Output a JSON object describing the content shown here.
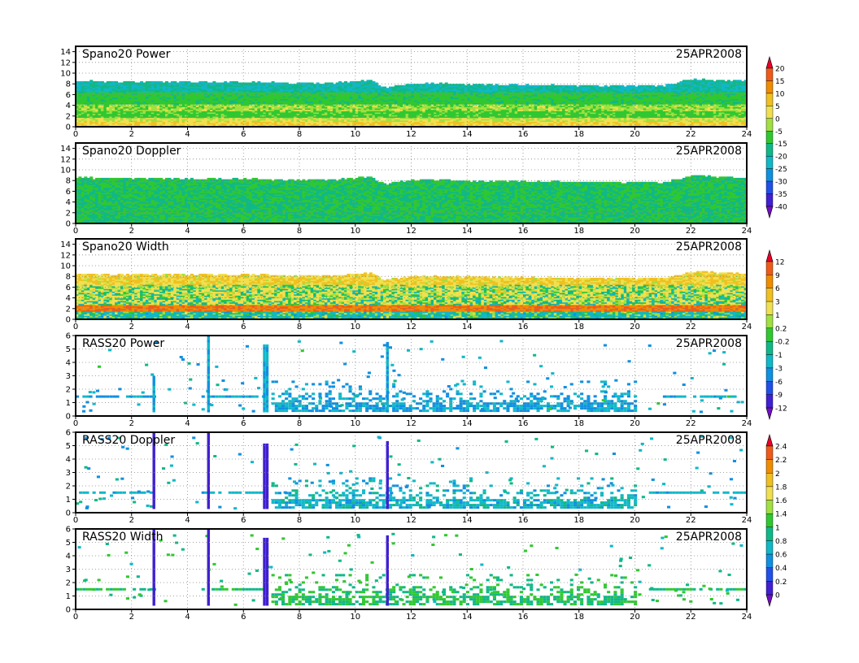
{
  "chart_data": [
    {
      "type": "heatmap",
      "title": "Spano20  Power",
      "date": "25APR2008",
      "xlim": [
        0,
        24
      ],
      "ylim": [
        0,
        15
      ],
      "xticks": [
        0,
        2,
        4,
        6,
        8,
        10,
        12,
        14,
        16,
        18,
        20,
        22,
        24
      ],
      "yticks": [
        0,
        2,
        4,
        6,
        8,
        10,
        12,
        14
      ],
      "grid": true,
      "colorbar": "power",
      "data_description": "Continuous layer from 0 to ~8 km all day; values mostly -15 to 0, with a bright near-surface band below ~1.5 km",
      "coverage": {
        "hours": [
          0,
          3,
          6,
          9,
          10.5,
          11,
          12,
          15,
          18,
          21,
          22,
          24
        ],
        "top": [
          8.4,
          8.3,
          8.2,
          8.0,
          8.6,
          7.2,
          8.0,
          7.8,
          7.6,
          7.6,
          8.8,
          8.4
        ],
        "bottom": [
          0,
          0,
          0,
          0,
          0,
          0,
          0,
          0,
          0,
          0,
          0,
          0
        ]
      },
      "layers": [
        {
          "from": 0,
          "to": 1,
          "value": 5
        },
        {
          "from": 1,
          "to": 1.6,
          "value": 0
        },
        {
          "from": 1.6,
          "to": 3,
          "value": -8
        },
        {
          "from": 3,
          "to": 4.2,
          "value": -3
        },
        {
          "from": 4.2,
          "to": 6.5,
          "value": -12
        },
        {
          "from": 6.5,
          "to": 9,
          "value": -20
        }
      ]
    },
    {
      "type": "heatmap",
      "title": "Spano20  Doppler",
      "date": "25APR2008",
      "xlim": [
        0,
        24
      ],
      "ylim": [
        0,
        15
      ],
      "xticks": [
        0,
        2,
        4,
        6,
        8,
        10,
        12,
        14,
        16,
        18,
        20,
        22,
        24
      ],
      "yticks": [
        0,
        2,
        4,
        6,
        8,
        10,
        12,
        14
      ],
      "grid": true,
      "colorbar": "power",
      "data_description": "Layer from 0 to ~8 km; values scattered between -20 and -10",
      "coverage": {
        "hours": [
          0,
          3,
          6,
          9,
          10.5,
          11,
          12,
          15,
          18,
          21,
          22,
          24
        ],
        "top": [
          8.4,
          8.3,
          8.2,
          8.0,
          8.6,
          7.2,
          8.0,
          7.8,
          7.6,
          7.6,
          8.8,
          8.4
        ],
        "bottom": [
          0,
          0,
          0,
          0,
          0,
          0,
          0,
          0,
          0,
          0,
          0,
          0
        ]
      },
      "layers": [
        {
          "from": 0,
          "to": 9,
          "value": -15
        }
      ]
    },
    {
      "type": "heatmap",
      "title": "Spano20  Width",
      "date": "25APR2008",
      "xlim": [
        0,
        24
      ],
      "ylim": [
        0,
        15
      ],
      "xticks": [
        0,
        2,
        4,
        6,
        8,
        10,
        12,
        14,
        16,
        18,
        20,
        22,
        24
      ],
      "yticks": [
        0,
        2,
        4,
        6,
        8,
        10,
        12,
        14
      ],
      "grid": true,
      "colorbar": "width",
      "data_description": "Layer from 0 to ~8 km; strong band near 1.5-2.5 km (values 3-12), upper levels near 0.2-1",
      "coverage": {
        "hours": [
          0,
          3,
          6,
          9,
          10.5,
          11,
          12,
          15,
          18,
          21,
          22,
          24
        ],
        "top": [
          8.4,
          8.3,
          8.2,
          8.0,
          8.6,
          7.2,
          8.0,
          7.8,
          7.6,
          7.6,
          8.8,
          8.4
        ],
        "bottom": [
          0,
          0,
          0,
          0,
          0,
          0,
          0,
          0,
          0,
          0,
          0,
          0
        ]
      },
      "layers": [
        {
          "from": 0,
          "to": 1.3,
          "value": -1
        },
        {
          "from": 1.3,
          "to": 2.6,
          "value": 9
        },
        {
          "from": 2.6,
          "to": 4,
          "value": 0.5
        },
        {
          "from": 4,
          "to": 6.5,
          "value": 1
        },
        {
          "from": 6.5,
          "to": 9,
          "value": 3
        }
      ]
    },
    {
      "type": "heatmap",
      "title": "RASS20  Power",
      "date": "25APR2008",
      "xlim": [
        0,
        24
      ],
      "ylim": [
        0,
        6
      ],
      "xticks": [
        0,
        2,
        4,
        6,
        8,
        10,
        12,
        14,
        16,
        18,
        20,
        22,
        24
      ],
      "yticks": [
        0,
        1,
        2,
        3,
        4,
        5,
        6
      ],
      "grid": true,
      "colorbar": "width",
      "data_description": "Sparse returns: horizontal band near 1.4 km, dense cluster 0.3-2.5 km from 7 to 20 h, vertical streaks at about 2.8, 4.7, 6.7 and 11.1 h",
      "band_height": 1.45,
      "band_segments": [
        [
          0,
          2.8
        ],
        [
          4.5,
          6.7
        ],
        [
          21,
          24
        ]
      ],
      "vertical_streaks": [
        {
          "x": 2.75,
          "top": 3.0
        },
        {
          "x": 4.7,
          "top": 6.0
        },
        {
          "x": 6.7,
          "top": 5.2
        },
        {
          "x": 6.8,
          "top": 5.2
        },
        {
          "x": 11.1,
          "top": 5.5
        }
      ],
      "dense_region": {
        "x0": 7,
        "x1": 20,
        "bottom": 0.3,
        "top": 2.6
      },
      "typical_value": -3
    },
    {
      "type": "heatmap",
      "title": "RASS20  Doppler",
      "date": "25APR2008",
      "xlim": [
        0,
        24
      ],
      "ylim": [
        0,
        6
      ],
      "xticks": [
        0,
        2,
        4,
        6,
        8,
        10,
        12,
        14,
        16,
        18,
        20,
        22,
        24
      ],
      "yticks": [
        0,
        1,
        2,
        3,
        4,
        5,
        6
      ],
      "grid": true,
      "colorbar": "rass",
      "data_description": "Sparse returns mostly 0.6-0.8; band near 1.5 km; vertical streaks with low values",
      "band_height": 1.5,
      "band_segments": [
        [
          0,
          2.8
        ],
        [
          4.5,
          6.7
        ],
        [
          20.5,
          24
        ]
      ],
      "vertical_streaks": [
        {
          "x": 2.75,
          "top": 6.0
        },
        {
          "x": 4.7,
          "top": 6.0
        },
        {
          "x": 6.7,
          "top": 5.0
        },
        {
          "x": 6.8,
          "top": 5.0
        },
        {
          "x": 11.1,
          "top": 5.2
        }
      ],
      "dense_region": {
        "x0": 7,
        "x1": 20,
        "bottom": 0.3,
        "top": 2.6
      },
      "typical_value": 0.7
    },
    {
      "type": "heatmap",
      "title": "RASS20  Width",
      "date": "25APR2008",
      "xlim": [
        0,
        24
      ],
      "ylim": [
        0,
        6
      ],
      "xticks": [
        0,
        2,
        4,
        6,
        8,
        10,
        12,
        14,
        16,
        18,
        20,
        22,
        24
      ],
      "yticks": [
        0,
        1,
        2,
        3,
        4,
        5,
        6
      ],
      "grid": true,
      "colorbar": "rass",
      "data_description": "Sparse returns mostly 0.8-1.2; band near 1.5 km; vertical streaks at 2.8, 4.7, 6.7 and 11.1 h",
      "band_height": 1.5,
      "band_segments": [
        [
          0,
          2.8
        ],
        [
          4.5,
          6.7
        ],
        [
          20.5,
          24
        ]
      ],
      "vertical_streaks": [
        {
          "x": 2.75,
          "top": 6.0
        },
        {
          "x": 4.7,
          "top": 6.0
        },
        {
          "x": 6.7,
          "top": 5.2
        },
        {
          "x": 6.8,
          "top": 5.2
        },
        {
          "x": 11.1,
          "top": 5.5
        }
      ],
      "dense_region": {
        "x0": 7,
        "x1": 20,
        "bottom": 0.3,
        "top": 2.6
      },
      "typical_value": 1.0
    }
  ],
  "colorbars": {
    "power": {
      "labels": [
        "20",
        "15",
        "10",
        "5",
        "0",
        "-5",
        "-15",
        "-20",
        "-25",
        "-30",
        "-35",
        "-40"
      ],
      "colors": [
        "#e8002a",
        "#ef5a1a",
        "#f08c00",
        "#f0c020",
        "#f0e050",
        "#a0e040",
        "#30c830",
        "#10b888",
        "#10b8c8",
        "#1090e0",
        "#2050e8",
        "#4020d0",
        "#7010c0"
      ]
    },
    "width": {
      "labels": [
        "12",
        "9",
        "6",
        "3",
        "1",
        "0.2",
        "-0.2",
        "-1",
        "-3",
        "-6",
        "-9",
        "-12"
      ],
      "colors": [
        "#e8002a",
        "#ef5a1a",
        "#f08c00",
        "#f0c020",
        "#f0e050",
        "#a0e040",
        "#30c830",
        "#10b888",
        "#10b8c8",
        "#1090e0",
        "#2050e8",
        "#4020d0",
        "#7010c0"
      ]
    },
    "rass": {
      "labels": [
        "2.4",
        "2.2",
        "2",
        "1.8",
        "1.6",
        "1.4",
        "1",
        "0.8",
        "0.6",
        "0.4",
        "0.2",
        "0"
      ],
      "colors": [
        "#e8002a",
        "#ef5a1a",
        "#f08c00",
        "#f0c020",
        "#f0e050",
        "#a0e040",
        "#30c830",
        "#10b888",
        "#10b8c8",
        "#1090e0",
        "#2050e8",
        "#4020d0",
        "#7010c0"
      ]
    }
  }
}
